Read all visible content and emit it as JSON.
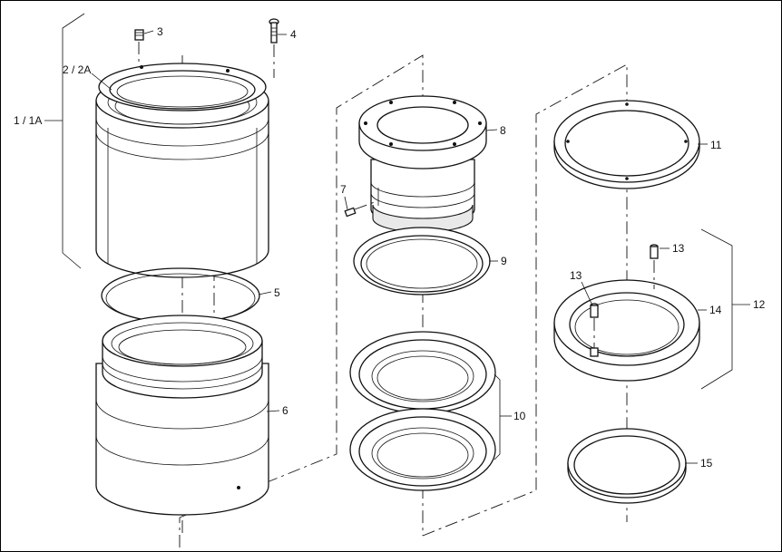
{
  "callouts": {
    "c1": "1 / 1A",
    "c2": "2 / 2A",
    "c3": "3",
    "c4": "4",
    "c5": "5",
    "c6": "6",
    "c7": "7",
    "c8": "8",
    "c9": "9",
    "c10": "10",
    "c11": "11",
    "c12": "12",
    "c13a": "13",
    "c13b": "13",
    "c14": "14",
    "c15": "15"
  }
}
